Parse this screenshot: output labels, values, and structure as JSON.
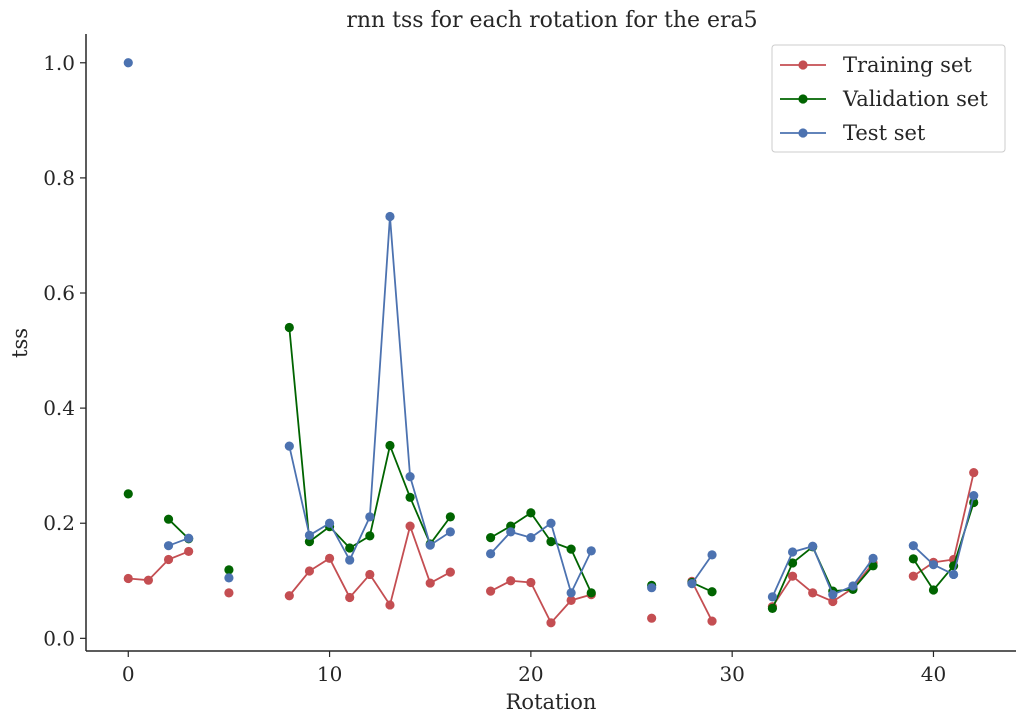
{
  "chart_data": {
    "type": "line",
    "title": "rnn tss for each rotation for the era5",
    "xlabel": "Rotation",
    "ylabel": "tss",
    "xlim": [
      -2.1,
      44.1
    ],
    "ylim": [
      -0.022,
      1.05
    ],
    "xticks": [
      0,
      10,
      20,
      30,
      40
    ],
    "xtick_labels": [
      "0",
      "10",
      "20",
      "30",
      "40"
    ],
    "yticks": [
      0.0,
      0.2,
      0.4,
      0.6,
      0.8,
      1.0
    ],
    "ytick_labels": [
      "0.0",
      "0.2",
      "0.4",
      "0.6",
      "0.8",
      "1.0"
    ],
    "grid": false,
    "legend_position": "top-right",
    "series": [
      {
        "name": "Training set",
        "color": "#c44e52",
        "points": [
          [
            0,
            0.104
          ],
          [
            1,
            0.101
          ],
          [
            2,
            0.137
          ],
          [
            3,
            0.151
          ],
          [
            4,
            null
          ],
          [
            5,
            0.079
          ],
          [
            6,
            null
          ],
          [
            7,
            null
          ],
          [
            8,
            0.074
          ],
          [
            9,
            0.117
          ],
          [
            10,
            0.139
          ],
          [
            11,
            0.071
          ],
          [
            12,
            0.111
          ],
          [
            13,
            0.058
          ],
          [
            14,
            0.195
          ],
          [
            15,
            0.096
          ],
          [
            16,
            0.115
          ],
          [
            17,
            null
          ],
          [
            18,
            0.082
          ],
          [
            19,
            0.1
          ],
          [
            20,
            0.097
          ],
          [
            21,
            0.027
          ],
          [
            22,
            0.066
          ],
          [
            23,
            0.076
          ],
          [
            24,
            null
          ],
          [
            25,
            null
          ],
          [
            26,
            0.035
          ],
          [
            27,
            null
          ],
          [
            28,
            0.099
          ],
          [
            29,
            0.03
          ],
          [
            30,
            null
          ],
          [
            31,
            null
          ],
          [
            32,
            0.055
          ],
          [
            33,
            0.108
          ],
          [
            34,
            0.079
          ],
          [
            35,
            0.064
          ],
          [
            36,
            0.087
          ],
          [
            37,
            0.131
          ],
          [
            38,
            null
          ],
          [
            39,
            0.108
          ],
          [
            40,
            0.132
          ],
          [
            41,
            0.137
          ],
          [
            42,
            0.288
          ]
        ]
      },
      {
        "name": "Validation set",
        "color": "#006400",
        "points": [
          [
            0,
            0.251
          ],
          [
            1,
            null
          ],
          [
            2,
            0.207
          ],
          [
            3,
            0.173
          ],
          [
            4,
            null
          ],
          [
            5,
            0.119
          ],
          [
            6,
            null
          ],
          [
            7,
            null
          ],
          [
            8,
            0.54
          ],
          [
            9,
            0.168
          ],
          [
            10,
            0.194
          ],
          [
            11,
            0.157
          ],
          [
            12,
            0.178
          ],
          [
            13,
            0.335
          ],
          [
            14,
            0.245
          ],
          [
            15,
            0.164
          ],
          [
            16,
            0.211
          ],
          [
            17,
            null
          ],
          [
            18,
            0.175
          ],
          [
            19,
            0.195
          ],
          [
            20,
            0.218
          ],
          [
            21,
            0.168
          ],
          [
            22,
            0.155
          ],
          [
            23,
            0.079
          ],
          [
            24,
            null
          ],
          [
            25,
            null
          ],
          [
            26,
            0.092
          ],
          [
            27,
            null
          ],
          [
            28,
            0.097
          ],
          [
            29,
            0.081
          ],
          [
            30,
            null
          ],
          [
            31,
            null
          ],
          [
            32,
            0.052
          ],
          [
            33,
            0.131
          ],
          [
            34,
            0.159
          ],
          [
            35,
            0.082
          ],
          [
            36,
            0.085
          ],
          [
            37,
            0.126
          ],
          [
            38,
            null
          ],
          [
            39,
            0.138
          ],
          [
            40,
            0.084
          ],
          [
            41,
            0.126
          ],
          [
            42,
            0.236
          ]
        ]
      },
      {
        "name": "Test set",
        "color": "#4c72b0",
        "points": [
          [
            0,
            1.0
          ],
          [
            1,
            null
          ],
          [
            2,
            0.161
          ],
          [
            3,
            0.174
          ],
          [
            4,
            null
          ],
          [
            5,
            0.105
          ],
          [
            6,
            null
          ],
          [
            7,
            null
          ],
          [
            8,
            0.334
          ],
          [
            9,
            0.179
          ],
          [
            10,
            0.2
          ],
          [
            11,
            0.136
          ],
          [
            12,
            0.211
          ],
          [
            13,
            0.733
          ],
          [
            14,
            0.281
          ],
          [
            15,
            0.162
          ],
          [
            16,
            0.185
          ],
          [
            17,
            null
          ],
          [
            18,
            0.147
          ],
          [
            19,
            0.185
          ],
          [
            20,
            0.175
          ],
          [
            21,
            0.2
          ],
          [
            22,
            0.079
          ],
          [
            23,
            0.152
          ],
          [
            24,
            null
          ],
          [
            25,
            null
          ],
          [
            26,
            0.088
          ],
          [
            27,
            null
          ],
          [
            28,
            0.095
          ],
          [
            29,
            0.145
          ],
          [
            30,
            null
          ],
          [
            31,
            null
          ],
          [
            32,
            0.072
          ],
          [
            33,
            0.15
          ],
          [
            34,
            0.16
          ],
          [
            35,
            0.076
          ],
          [
            36,
            0.091
          ],
          [
            37,
            0.139
          ],
          [
            38,
            null
          ],
          [
            39,
            0.161
          ],
          [
            40,
            0.128
          ],
          [
            41,
            0.111
          ],
          [
            42,
            0.248
          ]
        ]
      }
    ]
  }
}
